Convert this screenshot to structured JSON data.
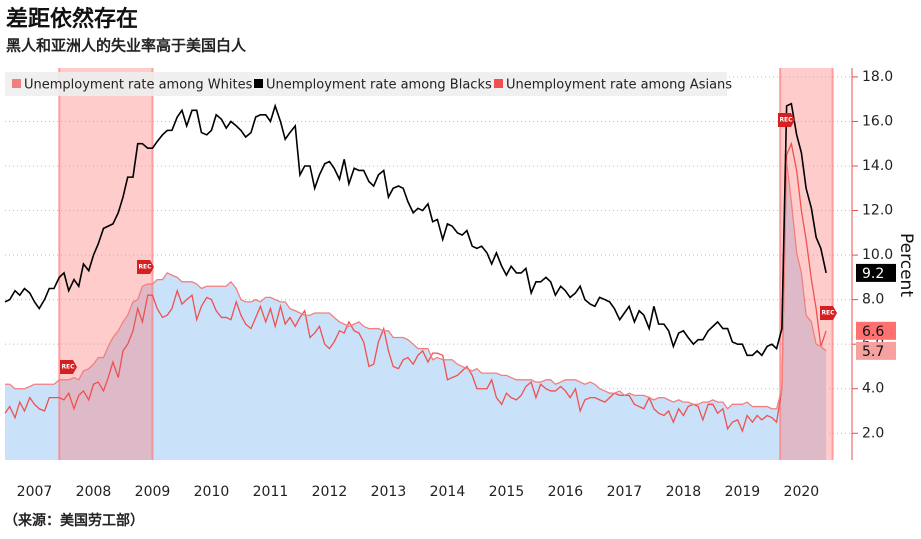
{
  "chart_data": {
    "type": "line",
    "title": "差距依然存在",
    "subtitle": "黑人和亚洲人的失业率高于美国白人",
    "source": "（来源：美国劳工部）",
    "y_label": "Percent",
    "recessions": [
      {
        "start": 2007.92,
        "end": 2009.5,
        "label": "REC"
      },
      {
        "start": 2020.14,
        "end": 2021.03,
        "label": "REC"
      }
    ],
    "recession_color": "#ff8080",
    "legend": "top-left",
    "grid": true,
    "xlim": [
      2007,
      2021.07
    ],
    "xticks": [
      {
        "value": 2007.5,
        "label": "2007"
      },
      {
        "value": 2008.5,
        "label": "2008"
      },
      {
        "value": 2009.5,
        "label": "2009"
      },
      {
        "value": 2010.5,
        "label": "2010"
      },
      {
        "value": 2011.5,
        "label": "2011"
      },
      {
        "value": 2012.5,
        "label": "2012"
      },
      {
        "value": 2013.5,
        "label": "2013"
      },
      {
        "value": 2014.5,
        "label": "2014"
      },
      {
        "value": 2015.5,
        "label": "2015"
      },
      {
        "value": 2016.5,
        "label": "2016"
      },
      {
        "value": 2017.5,
        "label": "2017"
      },
      {
        "value": 2018.5,
        "label": "2018"
      },
      {
        "value": 2019.5,
        "label": "2019"
      },
      {
        "value": 2020.5,
        "label": "2020"
      }
    ],
    "ylim": [
      0.8,
      18.4
    ],
    "yticks": [
      {
        "value": 2,
        "label": "2.0"
      },
      {
        "value": 4,
        "label": "4.0"
      },
      {
        "value": 6,
        "label": "6.0"
      },
      {
        "value": 8,
        "label": "8.0"
      },
      {
        "value": 10,
        "label": "10.0"
      },
      {
        "value": 12,
        "label": "12.0"
      },
      {
        "value": 14,
        "label": "14.0"
      },
      {
        "value": 16,
        "label": "16.0"
      },
      {
        "value": 18,
        "label": "18.0"
      }
    ],
    "x": [
      2007.0,
      2007.08,
      2007.17,
      2007.25,
      2007.33,
      2007.42,
      2007.5,
      2007.58,
      2007.67,
      2007.75,
      2007.83,
      2007.92,
      2008.0,
      2008.08,
      2008.17,
      2008.25,
      2008.33,
      2008.42,
      2008.5,
      2008.58,
      2008.67,
      2008.75,
      2008.83,
      2008.92,
      2009.0,
      2009.08,
      2009.17,
      2009.25,
      2009.33,
      2009.42,
      2009.5,
      2009.58,
      2009.67,
      2009.75,
      2009.83,
      2009.92,
      2010.0,
      2010.08,
      2010.17,
      2010.25,
      2010.33,
      2010.42,
      2010.5,
      2010.58,
      2010.67,
      2010.75,
      2010.83,
      2010.92,
      2011.0,
      2011.08,
      2011.17,
      2011.25,
      2011.33,
      2011.42,
      2011.5,
      2011.58,
      2011.67,
      2011.75,
      2011.83,
      2011.92,
      2012.0,
      2012.08,
      2012.17,
      2012.25,
      2012.33,
      2012.42,
      2012.5,
      2012.58,
      2012.67,
      2012.75,
      2012.83,
      2012.92,
      2013.0,
      2013.08,
      2013.17,
      2013.25,
      2013.33,
      2013.42,
      2013.5,
      2013.58,
      2013.67,
      2013.75,
      2013.83,
      2013.92,
      2014.0,
      2014.08,
      2014.17,
      2014.25,
      2014.33,
      2014.42,
      2014.5,
      2014.58,
      2014.67,
      2014.75,
      2014.83,
      2014.92,
      2015.0,
      2015.08,
      2015.17,
      2015.25,
      2015.33,
      2015.42,
      2015.5,
      2015.58,
      2015.67,
      2015.75,
      2015.83,
      2015.92,
      2016.0,
      2016.08,
      2016.17,
      2016.25,
      2016.33,
      2016.42,
      2016.5,
      2016.58,
      2016.67,
      2016.75,
      2016.83,
      2016.92,
      2017.0,
      2017.08,
      2017.17,
      2017.25,
      2017.33,
      2017.42,
      2017.5,
      2017.58,
      2017.67,
      2017.75,
      2017.83,
      2017.92,
      2018.0,
      2018.08,
      2018.17,
      2018.25,
      2018.33,
      2018.42,
      2018.5,
      2018.58,
      2018.67,
      2018.75,
      2018.83,
      2018.92,
      2019.0,
      2019.08,
      2019.17,
      2019.25,
      2019.33,
      2019.42,
      2019.5,
      2019.58,
      2019.67,
      2019.75,
      2019.83,
      2019.92,
      2020.0,
      2020.08,
      2020.17,
      2020.25,
      2020.33,
      2020.42,
      2020.5,
      2020.58,
      2020.67,
      2020.75,
      2020.83,
      2020.92
    ],
    "series": [
      {
        "name": "Unemployment rate among Whites",
        "color": "#f08080",
        "fill": "#c9e1f9",
        "label_color": "#f7a0a0",
        "values": [
          4.2,
          4.2,
          4.0,
          4.0,
          4.0,
          4.1,
          4.2,
          4.2,
          4.2,
          4.2,
          4.2,
          4.4,
          4.4,
          4.4,
          4.5,
          4.4,
          4.8,
          4.9,
          5.1,
          5.4,
          5.4,
          5.9,
          6.3,
          6.6,
          7.0,
          7.3,
          7.9,
          8.0,
          8.6,
          8.7,
          8.7,
          8.9,
          8.9,
          9.2,
          9.1,
          9.0,
          8.8,
          8.8,
          8.8,
          8.7,
          8.5,
          8.6,
          8.6,
          8.6,
          8.6,
          8.6,
          8.8,
          8.5,
          8.0,
          7.9,
          7.9,
          8.0,
          7.9,
          8.1,
          8.1,
          8.0,
          7.9,
          7.9,
          7.6,
          7.5,
          7.4,
          7.3,
          7.3,
          7.4,
          7.4,
          7.4,
          7.4,
          7.2,
          7.0,
          6.9,
          6.8,
          6.9,
          7.0,
          6.8,
          6.7,
          6.7,
          6.7,
          6.6,
          6.6,
          6.3,
          6.3,
          6.3,
          6.2,
          6.0,
          5.8,
          5.8,
          5.8,
          5.3,
          5.4,
          5.3,
          5.3,
          5.3,
          5.1,
          5.0,
          4.9,
          4.8,
          4.9,
          4.7,
          4.7,
          4.7,
          4.7,
          4.6,
          4.6,
          4.5,
          4.4,
          4.4,
          4.4,
          4.4,
          4.3,
          4.3,
          4.4,
          4.4,
          4.2,
          4.3,
          4.4,
          4.4,
          4.4,
          4.3,
          4.2,
          4.3,
          4.2,
          4.0,
          3.9,
          3.8,
          3.8,
          3.9,
          3.7,
          3.8,
          3.7,
          3.7,
          3.7,
          3.6,
          3.5,
          3.6,
          3.6,
          3.5,
          3.4,
          3.5,
          3.4,
          3.4,
          3.3,
          3.3,
          3.4,
          3.4,
          3.5,
          3.4,
          3.4,
          3.1,
          3.3,
          3.3,
          3.3,
          3.4,
          3.2,
          3.2,
          3.2,
          3.2,
          3.1,
          3.1,
          4.0,
          14.2,
          12.4,
          10.1,
          9.2,
          7.3,
          7.0,
          6.0,
          5.9,
          5.7
        ]
      },
      {
        "name": "Unemployment rate among Blacks",
        "color": "#000000",
        "label_color": "#000000",
        "values": [
          7.9,
          8.0,
          8.4,
          8.2,
          8.5,
          8.3,
          7.9,
          7.6,
          8.0,
          8.5,
          8.5,
          9.0,
          9.2,
          8.4,
          8.9,
          8.6,
          9.6,
          9.3,
          10.0,
          10.5,
          11.2,
          11.3,
          11.4,
          11.9,
          12.6,
          13.5,
          13.5,
          15.0,
          15.0,
          14.8,
          14.8,
          15.1,
          15.4,
          15.6,
          15.6,
          16.2,
          16.5,
          15.8,
          16.5,
          16.5,
          15.5,
          15.4,
          15.6,
          16.3,
          16.1,
          15.7,
          16.0,
          15.8,
          15.6,
          15.3,
          15.5,
          16.2,
          16.3,
          16.3,
          16.0,
          16.7,
          16.0,
          15.2,
          15.5,
          15.8,
          13.6,
          14.0,
          14.0,
          13.0,
          13.6,
          14.1,
          14.2,
          13.9,
          13.4,
          14.3,
          13.2,
          13.9,
          13.8,
          13.8,
          13.3,
          13.1,
          13.6,
          13.8,
          12.6,
          13.0,
          13.1,
          13.0,
          12.4,
          11.9,
          12.1,
          12.0,
          12.3,
          11.5,
          11.6,
          10.7,
          11.4,
          11.3,
          11.0,
          10.9,
          11.1,
          10.4,
          10.3,
          10.4,
          10.1,
          9.6,
          10.1,
          9.5,
          9.1,
          9.5,
          9.2,
          9.2,
          9.4,
          8.3,
          8.8,
          8.8,
          9.0,
          8.8,
          8.2,
          8.6,
          8.4,
          8.1,
          8.3,
          8.6,
          8.0,
          7.8,
          7.7,
          8.1,
          8.0,
          7.9,
          7.6,
          7.1,
          7.4,
          7.7,
          7.0,
          7.5,
          7.3,
          6.7,
          7.7,
          6.9,
          6.9,
          6.6,
          5.9,
          6.5,
          6.6,
          6.3,
          6.0,
          6.2,
          6.2,
          6.6,
          6.8,
          7.0,
          6.7,
          6.7,
          6.1,
          6.0,
          6.0,
          5.5,
          5.5,
          5.7,
          5.5,
          5.9,
          6.0,
          5.8,
          6.7,
          16.7,
          16.8,
          15.4,
          14.6,
          13.0,
          12.1,
          10.8,
          10.3,
          9.2
        ]
      },
      {
        "name": "Unemployment rate among Asians",
        "color": "#f05050",
        "label_color": "#ff7070",
        "values": [
          2.9,
          3.2,
          2.7,
          3.4,
          3.0,
          3.6,
          3.3,
          3.1,
          3.0,
          3.6,
          3.6,
          3.6,
          3.5,
          3.8,
          3.1,
          3.7,
          3.9,
          3.5,
          4.2,
          4.3,
          3.9,
          4.5,
          5.2,
          4.5,
          5.7,
          6.0,
          6.6,
          7.6,
          7.0,
          8.2,
          8.2,
          7.6,
          7.2,
          7.3,
          7.6,
          8.4,
          7.8,
          8.0,
          8.2,
          7.1,
          7.7,
          8.1,
          8.0,
          7.5,
          7.2,
          7.2,
          7.1,
          7.9,
          7.3,
          6.9,
          6.7,
          7.2,
          7.7,
          7.0,
          7.6,
          6.8,
          7.7,
          6.9,
          7.2,
          6.8,
          7.2,
          7.5,
          6.3,
          6.5,
          6.8,
          6.0,
          5.8,
          6.1,
          6.6,
          6.5,
          7.0,
          6.6,
          6.5,
          6.1,
          5.0,
          5.1,
          6.1,
          6.7,
          5.7,
          5.0,
          4.9,
          5.3,
          5.4,
          5.1,
          5.5,
          5.7,
          5.2,
          5.6,
          5.6,
          5.5,
          4.4,
          4.5,
          4.6,
          4.8,
          5.0,
          4.6,
          4.0,
          4.0,
          4.0,
          4.4,
          3.6,
          3.3,
          3.8,
          3.6,
          3.5,
          3.7,
          4.1,
          4.3,
          3.6,
          4.2,
          4.0,
          3.9,
          3.9,
          4.1,
          3.9,
          3.6,
          4.0,
          3.0,
          3.5,
          3.6,
          3.6,
          3.5,
          3.4,
          3.6,
          3.8,
          3.7,
          3.7,
          3.7,
          3.3,
          3.2,
          3.1,
          3.6,
          3.1,
          2.9,
          2.8,
          3.0,
          2.5,
          3.1,
          2.8,
          3.2,
          3.3,
          3.2,
          2.6,
          3.3,
          3.3,
          2.9,
          3.1,
          2.2,
          2.5,
          2.6,
          2.1,
          2.8,
          2.5,
          2.8,
          2.6,
          2.8,
          2.7,
          2.5,
          4.0,
          14.5,
          15.0,
          13.8,
          12.0,
          10.7,
          8.9,
          7.6,
          5.9,
          6.6
        ]
      }
    ]
  }
}
